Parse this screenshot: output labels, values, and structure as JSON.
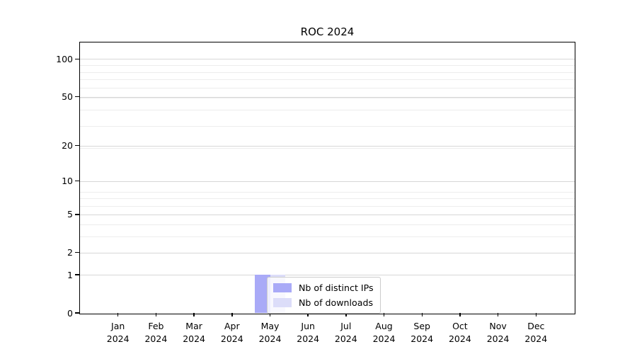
{
  "chart_data": {
    "type": "bar",
    "title": "ROC 2024",
    "categories": [
      "Jan 2024",
      "Feb 2024",
      "Mar 2024",
      "Apr 2024",
      "May 2024",
      "Jun 2024",
      "Jul 2024",
      "Aug 2024",
      "Sep 2024",
      "Oct 2024",
      "Nov 2024",
      "Dec 2024"
    ],
    "series": [
      {
        "name": "Nb of distinct IPs",
        "color": "#a9aaf7",
        "values": [
          0,
          0,
          0,
          0,
          1,
          0,
          0,
          0,
          0,
          0,
          0,
          0
        ]
      },
      {
        "name": "Nb of downloads",
        "color": "#dcddf9",
        "values": [
          0,
          0,
          0,
          0,
          1,
          0,
          0,
          0,
          0,
          0,
          0,
          0
        ]
      }
    ],
    "xlabel": "",
    "ylabel": "",
    "yscale": "log10(1+value)",
    "ylim": [
      0,
      116
    ],
    "ytick_values": [
      0,
      1,
      2,
      5,
      10,
      20,
      50,
      100
    ],
    "ytick_labels": [
      "0",
      "1",
      "2",
      "5",
      "10",
      "20",
      "50",
      "100"
    ],
    "minor_gridline_u_values": [
      4,
      5,
      7,
      8,
      9,
      20,
      30,
      40,
      50,
      60,
      70,
      80,
      90
    ],
    "grid": "horizontal",
    "legend_location": "inside-bottom-center"
  },
  "legend": {
    "item1": "Nb of distinct IPs",
    "item2": "Nb of downloads"
  }
}
